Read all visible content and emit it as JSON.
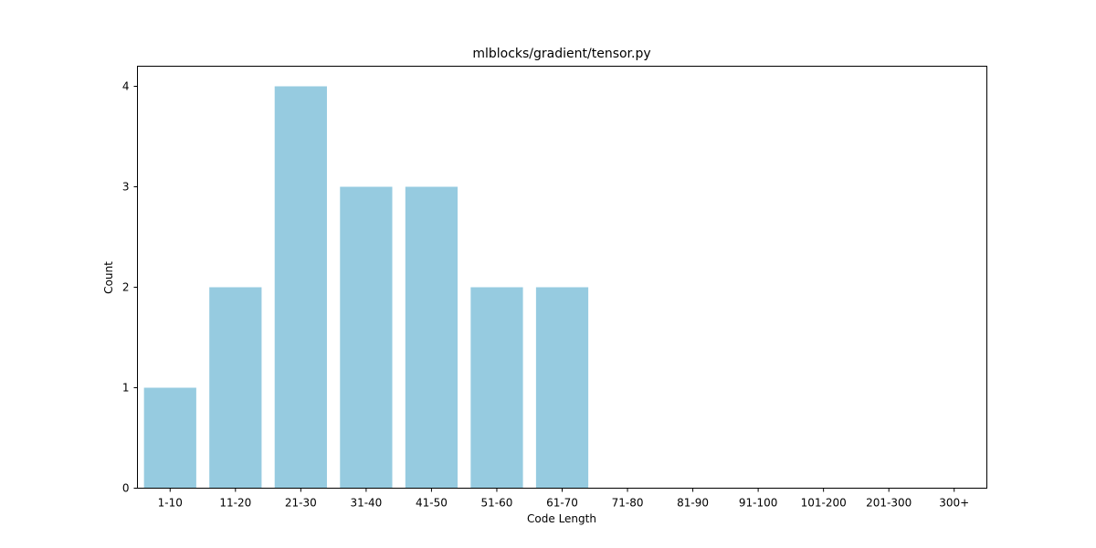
{
  "chart_data": {
    "type": "bar",
    "title": "mlblocks/gradient/tensor.py",
    "xlabel": "Code Length",
    "ylabel": "Count",
    "categories": [
      "1-10",
      "11-20",
      "21-30",
      "31-40",
      "41-50",
      "51-60",
      "61-70",
      "71-80",
      "81-90",
      "91-100",
      "101-200",
      "201-300",
      "300+"
    ],
    "values": [
      1,
      2,
      4,
      3,
      3,
      2,
      2,
      0,
      0,
      0,
      0,
      0,
      0
    ],
    "ylim": [
      0,
      4.2
    ],
    "yticks": [
      0,
      1,
      2,
      3,
      4
    ],
    "bar_color": "#96cbe0",
    "grid": false,
    "legend": false
  }
}
